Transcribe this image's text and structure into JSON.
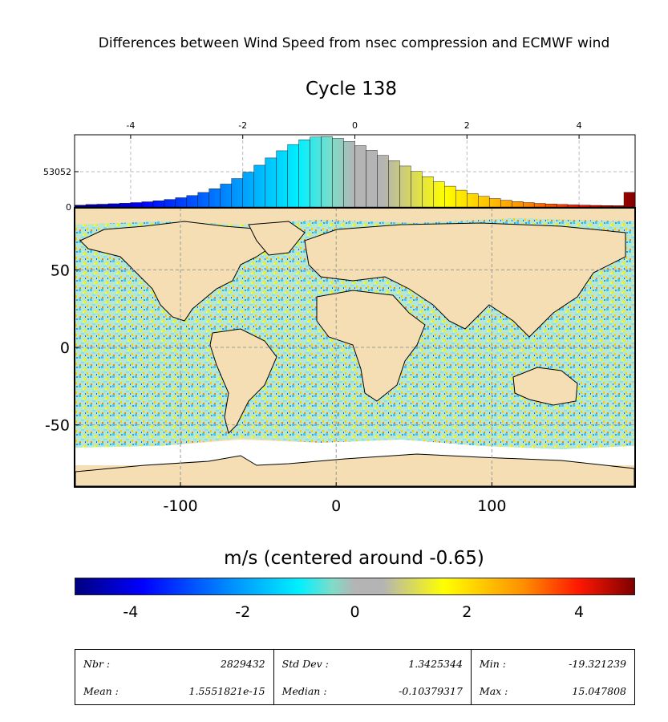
{
  "title": "Differences between Wind Speed from nsec compression and ECMWF wind",
  "subtitle": "Cycle 138",
  "chart_data": [
    {
      "type": "bar",
      "name": "histogram",
      "x_ticks": [
        "-4",
        "-2",
        "0",
        "2",
        "4"
      ],
      "xlim": [
        -5,
        5
      ],
      "y_ticks": [
        "0",
        "53052"
      ],
      "grid": true,
      "bins": {
        "centers": [
          -4.9,
          -4.7,
          -4.5,
          -4.3,
          -4.1,
          -3.9,
          -3.7,
          -3.5,
          -3.3,
          -3.1,
          -2.9,
          -2.7,
          -2.5,
          -2.3,
          -2.1,
          -1.9,
          -1.7,
          -1.5,
          -1.3,
          -1.1,
          -0.9,
          -0.7,
          -0.5,
          -0.3,
          -0.1,
          0.1,
          0.3,
          0.5,
          0.7,
          0.9,
          1.1,
          1.3,
          1.5,
          1.7,
          1.9,
          2.1,
          2.3,
          2.5,
          2.7,
          2.9,
          3.1,
          3.3,
          3.5,
          3.7,
          3.9,
          4.1,
          4.3,
          4.5,
          4.7,
          4.9
        ],
        "counts": [
          2700,
          3700,
          4200,
          4900,
          5600,
          6600,
          7800,
          9300,
          11300,
          13900,
          17200,
          21800,
          27400,
          34400,
          42700,
          52300,
          62700,
          73600,
          84400,
          93800,
          100900,
          105000,
          105700,
          103100,
          98300,
          92100,
          85000,
          77400,
          69500,
          61500,
          53400,
          45500,
          38000,
          31200,
          25200,
          20100,
          16000,
          12700,
          10100,
          8100,
          6600,
          5400,
          4500,
          3800,
          3200,
          2800,
          2400,
          2100,
          1900,
          22000
        ]
      },
      "colorscale": [
        "#00007f",
        "#0000ff",
        "#0080ff",
        "#00e0ff",
        "#7fdfcf",
        "#b0b0b0",
        "#b0b0b0",
        "#ffff00",
        "#ff8000",
        "#ff0000",
        "#7f0000"
      ]
    },
    {
      "type": "heatmap",
      "name": "map",
      "x_ticks": [
        "-100",
        "0",
        "100"
      ],
      "y_ticks": [
        "50",
        "0",
        "-50"
      ],
      "xlim": [
        -168,
        192
      ],
      "ylim": [
        -90,
        90
      ],
      "grid": true,
      "land_color": "#f5deb3",
      "ice_color": "#ffffff",
      "colorscale_ref": "histogram"
    }
  ],
  "colorbar": {
    "label": "m/s (centered around -0.65)",
    "ticks": [
      "-4",
      "-2",
      "0",
      "2",
      "4"
    ],
    "range": [
      -5,
      5
    ]
  },
  "stats": {
    "nbr_label": "Nbr :",
    "nbr_value": "2829432",
    "mean_label": "Mean :",
    "mean_value": "1.5551821e-15",
    "std_label": "Std Dev :",
    "std_value": "1.3425344",
    "median_label": "Median :",
    "median_value": "-0.10379317",
    "min_label": "Min :",
    "min_value": "-19.321239",
    "max_label": "Max :",
    "max_value": "15.047808"
  }
}
